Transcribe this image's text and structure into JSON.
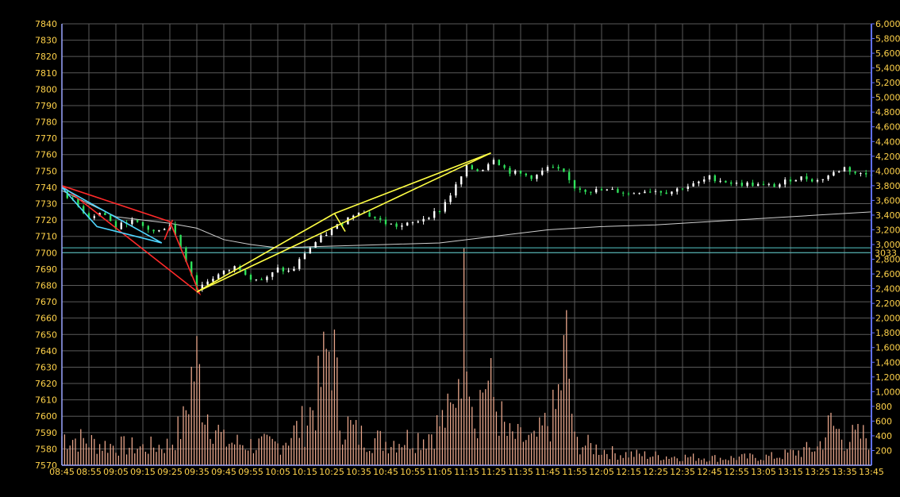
{
  "chart_data": {
    "type": "candlestick",
    "price_axis": {
      "ylim": [
        7570,
        7840
      ],
      "ticks": [
        7570,
        7580,
        7590,
        7600,
        7610,
        7620,
        7630,
        7640,
        7650,
        7660,
        7670,
        7680,
        7690,
        7700,
        7710,
        7720,
        7730,
        7740,
        7750,
        7760,
        7770,
        7780,
        7790,
        7800,
        7810,
        7820,
        7830,
        7840
      ]
    },
    "volume_axis": {
      "ylim": [
        0,
        6000
      ],
      "ticks": [
        200,
        400,
        600,
        800,
        1000,
        1200,
        1400,
        1600,
        1800,
        2000,
        2200,
        2400,
        2600,
        2800,
        3000,
        3200,
        3400,
        3600,
        3800,
        4000,
        4200,
        4400,
        4600,
        4800,
        5000,
        5200,
        5400,
        5600,
        5800,
        6000
      ],
      "tick_labels": [
        "200",
        "400",
        "600",
        "800",
        "1,000",
        "1,200",
        "1,400",
        "1,600",
        "1,800",
        "2,000",
        "2,200",
        "2,400",
        "2,600",
        "2,800",
        "3,000",
        "3,200",
        "3,400",
        "3,600",
        "3,800",
        "4,000",
        "4,200",
        "4,400",
        "4,600",
        "4,800",
        "5,000",
        "5,200",
        "5,400",
        "5,600",
        "5,800",
        "6,000"
      ],
      "current_label": "3033"
    },
    "x_ticks": [
      "08:45",
      "08:55",
      "09:05",
      "09:15",
      "09:25",
      "09:35",
      "09:45",
      "09:55",
      "10:05",
      "10:15",
      "10:25",
      "10:35",
      "10:45",
      "10:55",
      "11:05",
      "11:15",
      "11:25",
      "11:35",
      "11:45",
      "11:55",
      "12:05",
      "12:15",
      "12:25",
      "12:35",
      "12:45",
      "12:55",
      "13:05",
      "13:15",
      "13:25",
      "13:35",
      "13:45"
    ],
    "price_path": [
      [
        "08:45",
        7738
      ],
      [
        "08:50",
        7730
      ],
      [
        "08:55",
        7722
      ],
      [
        "09:00",
        7725
      ],
      [
        "09:05",
        7715
      ],
      [
        "09:10",
        7720
      ],
      [
        "09:15",
        7716
      ],
      [
        "09:20",
        7712
      ],
      [
        "09:25",
        7718
      ],
      [
        "09:30",
        7700
      ],
      [
        "09:35",
        7678
      ],
      [
        "09:40",
        7684
      ],
      [
        "09:45",
        7688
      ],
      [
        "09:50",
        7692
      ],
      [
        "09:55",
        7685
      ],
      [
        "10:00",
        7683
      ],
      [
        "10:05",
        7690
      ],
      [
        "10:10",
        7688
      ],
      [
        "10:15",
        7700
      ],
      [
        "10:20",
        7708
      ],
      [
        "10:25",
        7714
      ],
      [
        "10:30",
        7720
      ],
      [
        "10:35",
        7726
      ],
      [
        "10:40",
        7722
      ],
      [
        "10:45",
        7718
      ],
      [
        "10:50",
        7716
      ],
      [
        "10:55",
        7718
      ],
      [
        "11:00",
        7722
      ],
      [
        "11:05",
        7726
      ],
      [
        "11:10",
        7738
      ],
      [
        "11:15",
        7752
      ],
      [
        "11:20",
        7750
      ],
      [
        "11:25",
        7758
      ],
      [
        "11:30",
        7750
      ],
      [
        "11:35",
        7748
      ],
      [
        "11:40",
        7746
      ],
      [
        "11:45",
        7752
      ],
      [
        "11:50",
        7750
      ],
      [
        "11:55",
        7740
      ],
      [
        "12:00",
        7738
      ],
      [
        "12:05",
        7738
      ],
      [
        "12:10",
        7738
      ],
      [
        "12:15",
        7736
      ],
      [
        "12:20",
        7738
      ],
      [
        "12:25",
        7738
      ],
      [
        "12:30",
        7737
      ],
      [
        "12:35",
        7740
      ],
      [
        "12:40",
        7742
      ],
      [
        "12:45",
        7746
      ],
      [
        "12:50",
        7744
      ],
      [
        "12:55",
        7742
      ],
      [
        "13:00",
        7742
      ],
      [
        "13:05",
        7741
      ],
      [
        "13:10",
        7741
      ],
      [
        "13:15",
        7745
      ],
      [
        "13:20",
        7746
      ],
      [
        "13:25",
        7744
      ],
      [
        "13:30",
        7748
      ],
      [
        "13:35",
        7752
      ],
      [
        "13:40",
        7748
      ],
      [
        "13:45",
        7748
      ]
    ],
    "average_line": [
      [
        "08:45",
        7738
      ],
      [
        "09:05",
        7722
      ],
      [
        "09:25",
        7718
      ],
      [
        "09:35",
        7715
      ],
      [
        "09:45",
        7708
      ],
      [
        "09:55",
        7705
      ],
      [
        "10:05",
        7703
      ],
      [
        "10:25",
        7704
      ],
      [
        "10:45",
        7705
      ],
      [
        "11:05",
        7706
      ],
      [
        "11:25",
        7710
      ],
      [
        "11:45",
        7714
      ],
      [
        "12:05",
        7716
      ],
      [
        "12:25",
        7717
      ],
      [
        "12:45",
        7719
      ],
      [
        "13:05",
        7721
      ],
      [
        "13:25",
        7723
      ],
      [
        "13:45",
        7725
      ]
    ],
    "level_lines": [
      7700,
      7703
    ],
    "annotation_lines": [
      {
        "color": "#ff2a2a",
        "points": [
          [
            "08:45",
            7741
          ],
          [
            "09:25",
            7719
          ],
          [
            "09:36",
            7675
          ],
          [
            "08:45",
            7741
          ]
        ]
      },
      {
        "color": "#ff2a2a",
        "points": [
          [
            "09:23",
            7708
          ],
          [
            "09:26",
            7720
          ]
        ]
      },
      {
        "color": "#4fd5ff",
        "points": [
          [
            "08:45",
            7740
          ],
          [
            "08:58",
            7716
          ],
          [
            "09:22",
            7706
          ],
          [
            "08:45",
            7740
          ]
        ]
      },
      {
        "color": "#ffff44",
        "points": [
          [
            "09:35",
            7676
          ],
          [
            "10:26",
            7724
          ],
          [
            "11:24",
            7761
          ],
          [
            "09:35",
            7676
          ]
        ]
      },
      {
        "color": "#ffff44",
        "points": [
          [
            "10:26",
            7724
          ],
          [
            "10:30",
            7713
          ]
        ]
      }
    ],
    "volume_profile": [
      [
        "08:45",
        500
      ],
      [
        "09:00",
        350
      ],
      [
        "09:15",
        300
      ],
      [
        "09:25",
        350
      ],
      [
        "09:30",
        700
      ],
      [
        "09:33",
        1500
      ],
      [
        "09:35",
        1700
      ],
      [
        "09:38",
        1000
      ],
      [
        "09:45",
        400
      ],
      [
        "09:55",
        350
      ],
      [
        "10:05",
        350
      ],
      [
        "10:15",
        700
      ],
      [
        "10:20",
        1200
      ],
      [
        "10:25",
        2200
      ],
      [
        "10:28",
        800
      ],
      [
        "10:35",
        500
      ],
      [
        "10:45",
        400
      ],
      [
        "11:00",
        500
      ],
      [
        "11:10",
        900
      ],
      [
        "11:15",
        3000
      ],
      [
        "11:18",
        800
      ],
      [
        "11:22",
        1500
      ],
      [
        "11:30",
        500
      ],
      [
        "11:40",
        400
      ],
      [
        "11:48",
        900
      ],
      [
        "11:52",
        2000
      ],
      [
        "11:55",
        400
      ],
      [
        "12:10",
        200
      ],
      [
        "12:30",
        150
      ],
      [
        "12:50",
        120
      ],
      [
        "13:10",
        150
      ],
      [
        "13:25",
        300
      ],
      [
        "13:30",
        700
      ],
      [
        "13:35",
        450
      ],
      [
        "13:45",
        500
      ]
    ]
  }
}
